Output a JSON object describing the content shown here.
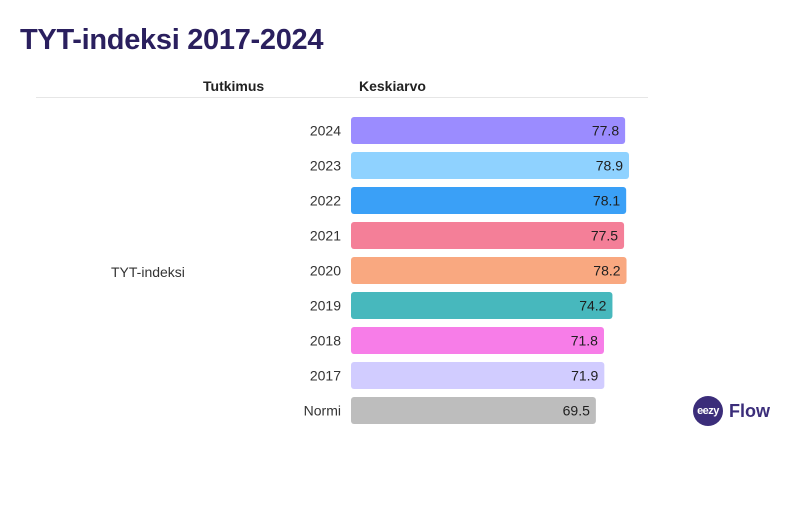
{
  "page": {
    "title": "TYT-indeksi 2017-2024",
    "col_study": "Tutkimus",
    "col_mean": "Keskiarvo",
    "group_label": "TYT-indeksi"
  },
  "logo": {
    "mark": "eezy",
    "text": "Flow"
  },
  "chart_data": {
    "type": "bar",
    "orientation": "horizontal",
    "title": "TYT-indeksi 2017-2024",
    "categories": [
      "2024",
      "2023",
      "2022",
      "2021",
      "2020",
      "2019",
      "2018",
      "2017",
      "Normi"
    ],
    "values": [
      77.8,
      78.9,
      78.1,
      77.5,
      78.2,
      74.2,
      71.8,
      71.9,
      69.5
    ],
    "colors": [
      "#9b8cff",
      "#8fd2ff",
      "#3aa0f7",
      "#f47f98",
      "#f9a880",
      "#47b8bd",
      "#f77de8",
      "#d1ccff",
      "#bdbdbd"
    ],
    "xlim": [
      0,
      78.9
    ],
    "grid": false,
    "legend": "none"
  }
}
